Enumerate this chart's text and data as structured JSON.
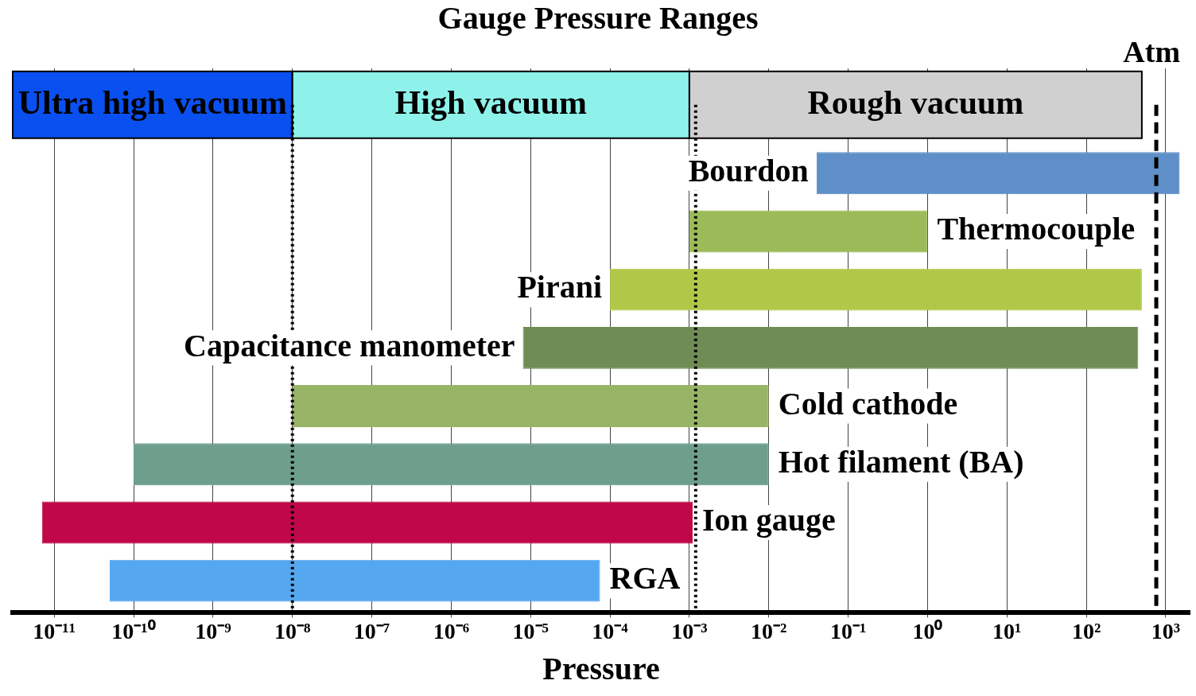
{
  "chart_data": {
    "type": "bar",
    "orientation": "horizontal",
    "title": "Gauge Pressure Ranges",
    "xlabel": "Pressure",
    "log": "x",
    "categories": [
      "Bourdon",
      "Thermocouple",
      "Pirani",
      "Capacitance manometer",
      "Cold cathode",
      "Hot filament (BA)",
      "Ion gauge",
      "RGA"
    ],
    "base": [
      0.04,
      0.001,
      0.0001,
      8e-06,
      1e-08,
      1e-10,
      7e-12,
      5e-11
    ],
    "values": [
      1499.96,
      0.999,
      499.9999,
      449.999992,
      0.00999999,
      0.0099999999,
      0.001099999993,
      7.495e-05
    ],
    "colors": [
      "#5f8fc8",
      "#9cbb58",
      "#b0c848",
      "#6f8c55",
      "#98b466",
      "#6e9e8c",
      "#c00848",
      "#55a8f0"
    ],
    "xlim": [
      3e-12,
      2000
    ],
    "xticks": [
      {
        "value": 1e-11,
        "label": "10⁻¹¹"
      },
      {
        "value": 1e-10,
        "label": "10⁻¹⁰"
      },
      {
        "value": 1e-09,
        "label": "10⁻⁹"
      },
      {
        "value": 1e-08,
        "label": "10⁻⁸"
      },
      {
        "value": 1e-07,
        "label": "10⁻⁷"
      },
      {
        "value": 1e-06,
        "label": "10⁻⁶"
      },
      {
        "value": 1e-05,
        "label": "10⁻⁵"
      },
      {
        "value": 0.0001,
        "label": "10⁻⁴"
      },
      {
        "value": 0.001,
        "label": "10⁻³"
      },
      {
        "value": 0.01,
        "label": "10⁻²"
      },
      {
        "value": 0.1,
        "label": "10⁻¹"
      },
      {
        "value": 1,
        "label": "10⁰"
      },
      {
        "value": 10,
        "label": "10¹"
      },
      {
        "value": 100,
        "label": "10²"
      },
      {
        "value": 1000,
        "label": "10³"
      }
    ],
    "tick_labels": "x",
    "grid": "x",
    "legend": false,
    "bands": [
      {
        "axis": "x",
        "from": 3e-12,
        "to": 1e-08,
        "label": "Ultra high vacuum",
        "color": "#0a50f0"
      },
      {
        "axis": "x",
        "from": 1e-08,
        "to": 0.001,
        "label": "High vacuum",
        "color": "#8ef2ea"
      },
      {
        "axis": "x",
        "from": 0.001,
        "to": 500,
        "label": "Rough vacuum",
        "color": "#d0d0d0"
      }
    ],
    "ref_lines": [
      {
        "axis": "x",
        "value": 1e-08,
        "line_style": "dotted"
      },
      {
        "axis": "x",
        "value": 0.0012,
        "line_style": "dotted"
      },
      {
        "axis": "x",
        "value": 760,
        "label": "Atm",
        "line_style": "dashed"
      }
    ]
  }
}
